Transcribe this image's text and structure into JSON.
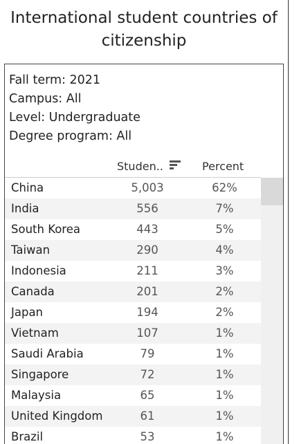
{
  "title": "International student countries of citizenship",
  "filters": {
    "fall_term": "Fall term: 2021",
    "campus": "Campus: All",
    "level": "Level: Undergraduate",
    "degree_program": "Degree program: All"
  },
  "table": {
    "columns": {
      "country": "",
      "students": "Studen..",
      "percent": "Percent"
    },
    "sort_icon": "sort-descending-icon",
    "rows": [
      {
        "country": "China",
        "students": "5,003",
        "percent": "62%"
      },
      {
        "country": "India",
        "students": "556",
        "percent": "7%"
      },
      {
        "country": "South Korea",
        "students": "443",
        "percent": "5%"
      },
      {
        "country": "Taiwan",
        "students": "290",
        "percent": "4%"
      },
      {
        "country": "Indonesia",
        "students": "211",
        "percent": "3%"
      },
      {
        "country": "Canada",
        "students": "201",
        "percent": "2%"
      },
      {
        "country": "Japan",
        "students": "194",
        "percent": "2%"
      },
      {
        "country": "Vietnam",
        "students": "107",
        "percent": "1%"
      },
      {
        "country": "Saudi Arabia",
        "students": "79",
        "percent": "1%"
      },
      {
        "country": "Singapore",
        "students": "72",
        "percent": "1%"
      },
      {
        "country": "Malaysia",
        "students": "65",
        "percent": "1%"
      },
      {
        "country": "United Kingdom",
        "students": "61",
        "percent": "1%"
      },
      {
        "country": "Brazil",
        "students": "53",
        "percent": "1%"
      }
    ]
  },
  "colors": {
    "row_band": "#f3f3f3",
    "scrollbar_track": "#f0f0f0",
    "scrollbar_thumb": "#d9d9d9"
  }
}
